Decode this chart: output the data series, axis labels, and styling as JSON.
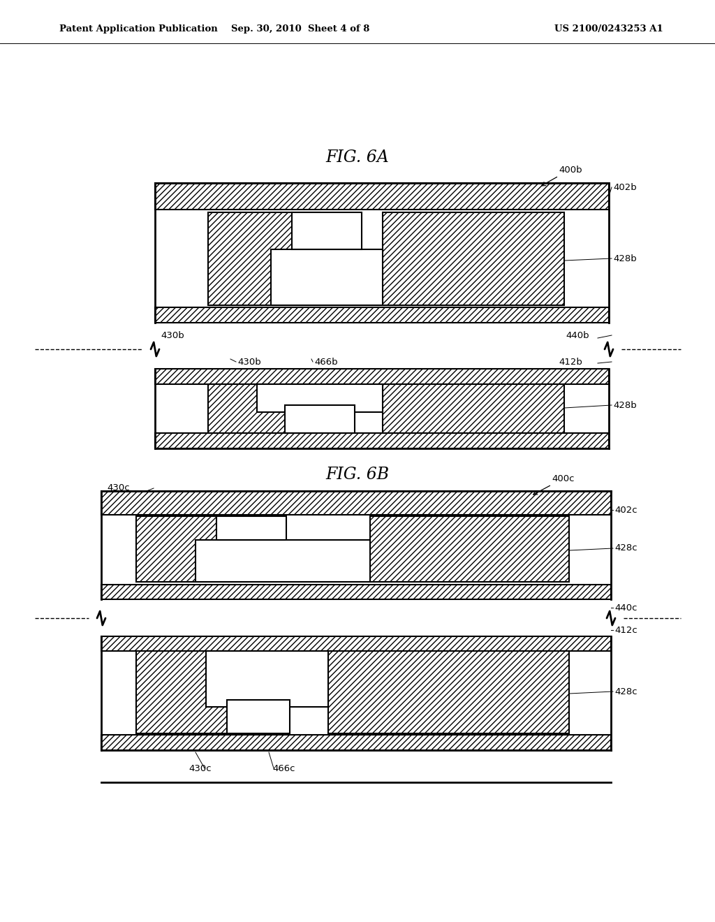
{
  "header_left": "Patent Application Publication",
  "header_center": "Sep. 30, 2010  Sheet 4 of 8",
  "header_right": "US 2100/0243253 A1",
  "fig6a_title": "FIG. 6A",
  "fig6b_title": "FIG. 6B",
  "bg_color": "#ffffff",
  "line_color": "#000000"
}
